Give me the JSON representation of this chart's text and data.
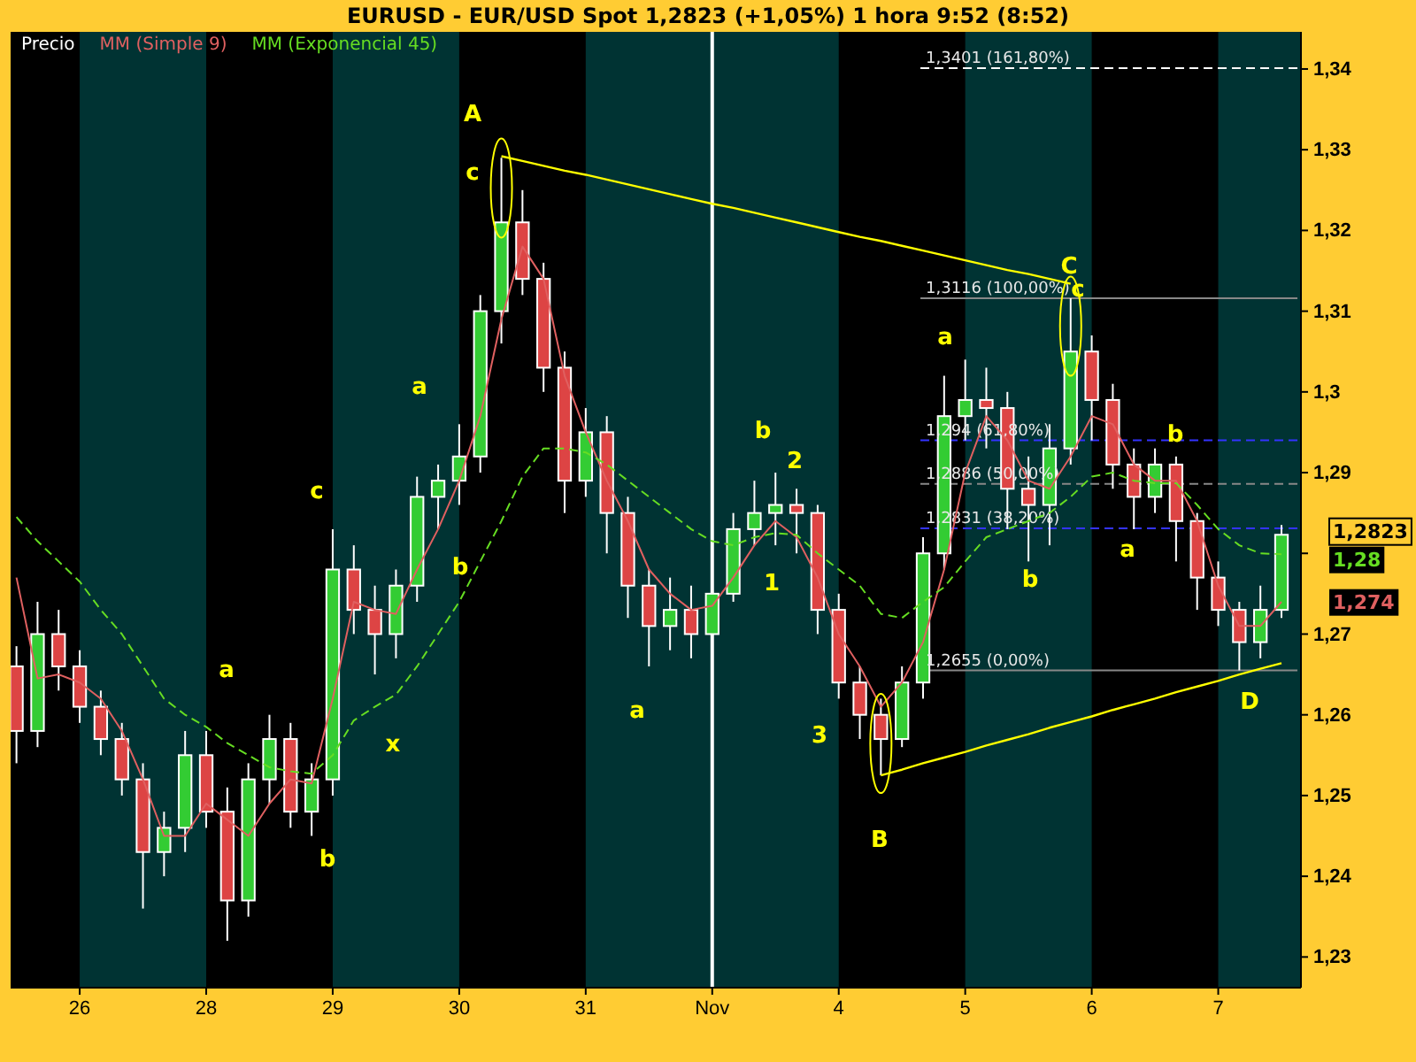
{
  "chart_data": {
    "type": "candlestick",
    "title": "EURUSD - EUR/USD Spot    1,2823 (+1,05%)    1 hora  9:52 (8:52)",
    "legend": "top left",
    "categories": [
      null,
      null,
      null,
      "26",
      null,
      null,
      null,
      null,
      null,
      "28",
      null,
      null,
      null,
      null,
      null,
      "29",
      null,
      null,
      null,
      null,
      null,
      "30",
      null,
      null,
      null,
      null,
      null,
      "31",
      null,
      null,
      null,
      null,
      null,
      "Nov",
      null,
      null,
      null,
      null,
      null,
      "4",
      null,
      null,
      null,
      null,
      null,
      "5",
      null,
      null,
      null,
      null,
      null,
      "6",
      null,
      null,
      null,
      null,
      null,
      "7",
      null,
      null,
      null
    ],
    "ylim": [
      1.2262,
      1.3446
    ],
    "yticks": [
      {
        "value": 1.23,
        "label": "1,23"
      },
      {
        "value": 1.24,
        "label": "1,24"
      },
      {
        "value": 1.25,
        "label": "1,25"
      },
      {
        "value": 1.26,
        "label": "1,26"
      },
      {
        "value": 1.27,
        "label": "1,27"
      },
      {
        "value": 1.28,
        "label": null
      },
      {
        "value": 1.29,
        "label": "1,29"
      },
      {
        "value": 1.3,
        "label": "1,3"
      },
      {
        "value": 1.31,
        "label": "1,31"
      },
      {
        "value": 1.32,
        "label": "1,32"
      },
      {
        "value": 1.33,
        "label": "1,33"
      },
      {
        "value": 1.34,
        "label": "1,34"
      }
    ],
    "series": [
      {
        "name": "Precio",
        "color": "#ffffff",
        "ohlc": [
          [
            1.266,
            1.2685,
            1.254,
            1.258
          ],
          [
            1.258,
            1.274,
            1.256,
            1.27
          ],
          [
            1.27,
            1.273,
            1.263,
            1.266
          ],
          [
            1.266,
            1.268,
            1.259,
            1.261
          ],
          [
            1.261,
            1.263,
            1.255,
            1.257
          ],
          [
            1.257,
            1.259,
            1.25,
            1.252
          ],
          [
            1.252,
            1.254,
            1.236,
            1.243
          ],
          [
            1.243,
            1.248,
            1.24,
            1.246
          ],
          [
            1.246,
            1.258,
            1.243,
            1.255
          ],
          [
            1.255,
            1.258,
            1.246,
            1.248
          ],
          [
            1.248,
            1.251,
            1.232,
            1.237
          ],
          [
            1.237,
            1.254,
            1.235,
            1.252
          ],
          [
            1.252,
            1.26,
            1.249,
            1.257
          ],
          [
            1.257,
            1.259,
            1.246,
            1.248
          ],
          [
            1.248,
            1.254,
            1.245,
            1.252
          ],
          [
            1.252,
            1.283,
            1.25,
            1.278
          ],
          [
            1.278,
            1.281,
            1.27,
            1.273
          ],
          [
            1.273,
            1.276,
            1.265,
            1.27
          ],
          [
            1.27,
            1.278,
            1.267,
            1.276
          ],
          [
            1.276,
            1.2895,
            1.274,
            1.287
          ],
          [
            1.287,
            1.291,
            1.283,
            1.289
          ],
          [
            1.289,
            1.296,
            1.286,
            1.292
          ],
          [
            1.292,
            1.312,
            1.29,
            1.31
          ],
          [
            1.31,
            1.329,
            1.306,
            1.321
          ],
          [
            1.321,
            1.325,
            1.312,
            1.314
          ],
          [
            1.314,
            1.316,
            1.3,
            1.303
          ],
          [
            1.303,
            1.305,
            1.285,
            1.289
          ],
          [
            1.289,
            1.298,
            1.287,
            1.295
          ],
          [
            1.295,
            1.297,
            1.28,
            1.285
          ],
          [
            1.285,
            1.287,
            1.272,
            1.276
          ],
          [
            1.276,
            1.278,
            1.266,
            1.271
          ],
          [
            1.271,
            1.277,
            1.268,
            1.273
          ],
          [
            1.273,
            1.276,
            1.267,
            1.27
          ],
          [
            1.27,
            1.277,
            1.269,
            1.275
          ],
          [
            1.275,
            1.285,
            1.274,
            1.283
          ],
          [
            1.283,
            1.289,
            1.281,
            1.285
          ],
          [
            1.285,
            1.29,
            1.281,
            1.286
          ],
          [
            1.286,
            1.288,
            1.28,
            1.285
          ],
          [
            1.285,
            1.286,
            1.27,
            1.273
          ],
          [
            1.273,
            1.275,
            1.262,
            1.264
          ],
          [
            1.264,
            1.266,
            1.257,
            1.26
          ],
          [
            1.26,
            1.262,
            1.2525,
            1.257
          ],
          [
            1.257,
            1.266,
            1.256,
            1.264
          ],
          [
            1.264,
            1.282,
            1.262,
            1.28
          ],
          [
            1.28,
            1.302,
            1.278,
            1.297
          ],
          [
            1.297,
            1.304,
            1.294,
            1.299
          ],
          [
            1.299,
            1.303,
            1.293,
            1.298
          ],
          [
            1.298,
            1.3,
            1.283,
            1.288
          ],
          [
            1.288,
            1.292,
            1.279,
            1.286
          ],
          [
            1.286,
            1.296,
            1.281,
            1.293
          ],
          [
            1.293,
            1.3116,
            1.291,
            1.305
          ],
          [
            1.305,
            1.307,
            1.294,
            1.299
          ],
          [
            1.299,
            1.301,
            1.288,
            1.291
          ],
          [
            1.291,
            1.293,
            1.283,
            1.287
          ],
          [
            1.287,
            1.293,
            1.285,
            1.291
          ],
          [
            1.291,
            1.292,
            1.279,
            1.284
          ],
          [
            1.284,
            1.285,
            1.273,
            1.277
          ],
          [
            1.277,
            1.279,
            1.271,
            1.273
          ],
          [
            1.273,
            1.274,
            1.2655,
            1.269
          ],
          [
            1.269,
            1.276,
            1.267,
            1.273
          ],
          [
            1.273,
            1.2835,
            1.272,
            1.2823
          ]
        ]
      },
      {
        "name": "MM (Simple 9)",
        "type": "line",
        "color": "#e06060",
        "values": [
          1.277,
          1.2645,
          1.265,
          1.264,
          1.262,
          1.258,
          1.252,
          1.245,
          1.245,
          1.249,
          1.247,
          1.245,
          1.249,
          1.252,
          1.2515,
          1.262,
          1.274,
          1.273,
          1.2725,
          1.278,
          1.283,
          1.289,
          1.297,
          1.309,
          1.318,
          1.314,
          1.302,
          1.295,
          1.289,
          1.284,
          1.278,
          1.275,
          1.273,
          1.2735,
          1.277,
          1.281,
          1.284,
          1.282,
          1.277,
          1.27,
          1.266,
          1.261,
          1.264,
          1.269,
          1.278,
          1.29,
          1.297,
          1.294,
          1.289,
          1.288,
          1.292,
          1.297,
          1.296,
          1.291,
          1.289,
          1.289,
          1.284,
          1.276,
          1.271,
          1.271,
          1.274
        ]
      },
      {
        "name": "MM (Exponencial 45)",
        "type": "line",
        "color": "#66dd22",
        "line_style": "dashed",
        "values": [
          1.2845,
          1.2815,
          1.279,
          1.2765,
          1.273,
          1.27,
          1.266,
          1.262,
          1.26,
          1.2585,
          1.2565,
          1.255,
          1.2535,
          1.253,
          1.2527,
          1.255,
          1.2593,
          1.261,
          1.2625,
          1.266,
          1.27,
          1.274,
          1.279,
          1.284,
          1.2895,
          1.293,
          1.293,
          1.2925,
          1.291,
          1.289,
          1.287,
          1.285,
          1.283,
          1.2815,
          1.281,
          1.282,
          1.2825,
          1.2823,
          1.28,
          1.278,
          1.276,
          1.2725,
          1.272,
          1.274,
          1.2758,
          1.279,
          1.282,
          1.283,
          1.284,
          1.285,
          1.287,
          1.2895,
          1.29,
          1.289,
          1.2887,
          1.2887,
          1.286,
          1.283,
          1.281,
          1.28,
          1.2799
        ]
      },
      {
        "type": "line",
        "color": "#ffff00",
        "values": [
          null,
          null,
          null,
          null,
          null,
          null,
          null,
          null,
          null,
          null,
          null,
          null,
          null,
          null,
          null,
          null,
          null,
          null,
          null,
          null,
          null,
          null,
          null,
          1.3292,
          1.3286,
          1.328,
          1.3274,
          1.3269,
          1.3263,
          1.3257,
          1.3251,
          1.3245,
          1.3239,
          1.3233,
          1.3228,
          1.3222,
          1.3216,
          1.321,
          1.3204,
          1.3198,
          1.3192,
          1.3187,
          1.3181,
          1.3175,
          1.3169,
          1.3163,
          1.3157,
          1.3151,
          1.3146,
          1.314,
          1.3134,
          null,
          null,
          null,
          null,
          null,
          null,
          null,
          null,
          null,
          null
        ]
      },
      {
        "type": "line",
        "color": "#ffff00",
        "values": [
          null,
          null,
          null,
          null,
          null,
          null,
          null,
          null,
          null,
          null,
          null,
          null,
          null,
          null,
          null,
          null,
          null,
          null,
          null,
          null,
          null,
          null,
          null,
          null,
          null,
          null,
          null,
          null,
          null,
          null,
          null,
          null,
          null,
          null,
          null,
          null,
          null,
          null,
          null,
          null,
          null,
          1.2525,
          1.2532,
          1.254,
          1.2547,
          1.2554,
          1.2562,
          1.2569,
          1.2576,
          1.2584,
          1.2591,
          1.2598,
          1.2606,
          1.2613,
          1.262,
          1.2628,
          1.2635,
          1.2642,
          1.265,
          1.2657,
          1.2664
        ]
      }
    ],
    "ref_lines": [
      {
        "axis": "x",
        "value": "Nov",
        "color": "#ffffff"
      },
      {
        "axis": "y",
        "value": 1.3401,
        "color": "#ffffff",
        "line_style": "dashed"
      },
      {
        "axis": "y",
        "value": 1.3116,
        "color": "#888888",
        "line_style": "solid"
      },
      {
        "axis": "y",
        "value": 1.294,
        "color": "#3333ff",
        "line_style": "dashed"
      },
      {
        "axis": "y",
        "value": 1.2886,
        "color": "#888888",
        "line_style": "dashed"
      },
      {
        "axis": "y",
        "value": 1.2831,
        "color": "#3333ff",
        "line_style": "dashed"
      },
      {
        "axis": "y",
        "value": 1.2655,
        "color": "#888888",
        "line_style": "solid"
      }
    ],
    "annotations": [
      "A",
      "c",
      "a",
      "c",
      "b",
      "a",
      "b",
      "x",
      "b",
      "2",
      "1",
      "a",
      "3",
      "B",
      "a",
      "C",
      "c",
      "b",
      "a",
      "b",
      "D",
      {
        "text": "1,3401 (161,80%)",
        "y": 1.3401
      },
      {
        "text": "1,3116 (100,00%)",
        "y": 1.3116
      },
      {
        "text": "1,294 (61,80%)",
        "y": 1.294
      },
      {
        "text": "1,2886 (50,00%)",
        "y": 1.2886
      },
      {
        "text": "1,2831 (38,20%)",
        "y": 1.2831
      },
      {
        "text": "1,2655 (0,00%)",
        "y": 1.2655
      },
      "1,2823",
      "1,28",
      "1,274"
    ]
  }
}
